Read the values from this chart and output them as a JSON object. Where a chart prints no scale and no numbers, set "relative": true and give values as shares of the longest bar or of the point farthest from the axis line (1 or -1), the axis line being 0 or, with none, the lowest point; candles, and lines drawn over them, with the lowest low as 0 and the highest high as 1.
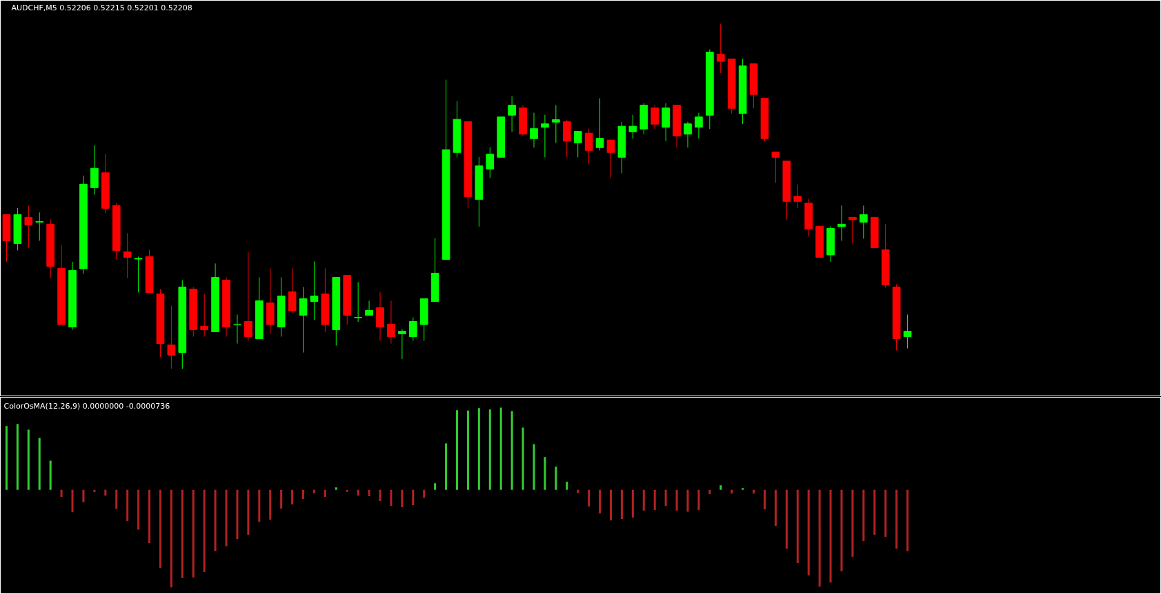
{
  "chart_data": [
    {
      "type": "candlestick",
      "title": "AUDCHF,M5 0.52206 0.52215 0.52201 0.52208",
      "relative": true,
      "tick_labels": false,
      "categories": [
        null,
        null,
        null,
        null,
        null,
        null,
        null,
        null,
        null,
        null,
        null,
        null,
        null,
        null,
        null,
        null,
        null,
        null,
        null,
        null,
        null,
        null,
        null,
        null,
        null,
        null,
        null,
        null,
        null,
        null,
        null,
        null,
        null,
        null,
        null,
        null,
        null,
        null,
        null,
        null,
        null,
        null,
        null,
        null,
        null,
        null,
        null,
        null,
        null,
        null,
        null,
        null,
        null,
        null,
        null,
        null,
        null,
        null,
        null,
        null,
        null,
        null,
        null,
        null,
        null,
        null,
        null,
        null,
        null,
        null,
        null,
        null,
        null,
        null,
        null,
        null,
        null,
        null,
        null,
        null,
        null,
        null,
        null
      ],
      "ohlc": [
        [
          0.447,
          0.447,
          0.31,
          0.371
        ],
        [
          0.363,
          0.466,
          0.343,
          0.447
        ],
        [
          0.439,
          0.473,
          0.351,
          0.417
        ],
        [
          0.425,
          0.453,
          0.371,
          0.427
        ],
        [
          0.419,
          0.433,
          0.263,
          0.297
        ],
        [
          0.291,
          0.358,
          0.128,
          0.128
        ],
        [
          0.121,
          0.31,
          0.113,
          0.285
        ],
        [
          0.29,
          0.56,
          0.275,
          0.535
        ],
        [
          0.525,
          0.648,
          0.505,
          0.581
        ],
        [
          0.568,
          0.623,
          0.451,
          0.465
        ],
        [
          0.473,
          0.48,
          0.317,
          0.343
        ],
        [
          0.339,
          0.393,
          0.263,
          0.323
        ],
        [
          0.318,
          0.325,
          0.221,
          0.32
        ],
        [
          0.325,
          0.345,
          0.221,
          0.221
        ],
        [
          0.217,
          0.231,
          0.034,
          0.073
        ],
        [
          0.069,
          0.183,
          0,
          0.039
        ],
        [
          0.047,
          0.257,
          0,
          0.237
        ],
        [
          0.231,
          0.237,
          0.093,
          0.113
        ],
        [
          0.123,
          0.217,
          0.093,
          0.113
        ],
        [
          0.107,
          0.305,
          0.107,
          0.265
        ],
        [
          0.257,
          0.265,
          0.093,
          0.121
        ],
        [
          0.127,
          0.157,
          0.073,
          0.128
        ],
        [
          0.137,
          0.339,
          0.081,
          0.093
        ],
        [
          0.087,
          0.265,
          0.087,
          0.197
        ],
        [
          0.191,
          0.291,
          0.101,
          0.128
        ],
        [
          0.121,
          0.265,
          0.093,
          0.211
        ],
        [
          0.223,
          0.291,
          0.161,
          0.168
        ],
        [
          0.155,
          0.237,
          0.047,
          0.203
        ],
        [
          0.195,
          0.311,
          0.141,
          0.211
        ],
        [
          0.217,
          0.291,
          0.107,
          0.128
        ],
        [
          0.113,
          0.265,
          0.067,
          0.265
        ],
        [
          0.271,
          0.271,
          0.128,
          0.155
        ],
        [
          0.148,
          0.251,
          0.136,
          0.149
        ],
        [
          0.155,
          0.197,
          0.155,
          0.169
        ],
        [
          0.177,
          0.223,
          0.081,
          0.121
        ],
        [
          0.129,
          0.197,
          0.073,
          0.093
        ],
        [
          0.101,
          0.115,
          0.028,
          0.109
        ],
        [
          0.093,
          0.149,
          0.081,
          0.137
        ],
        [
          0.128,
          0.203,
          0.081,
          0.203
        ],
        [
          0.195,
          0.379,
          0.195,
          0.277
        ],
        [
          0.317,
          0.838,
          0.317,
          0.635
        ],
        [
          0.627,
          0.776,
          0.613,
          0.723
        ],
        [
          0.716,
          0.716,
          0.465,
          0.499
        ],
        [
          0.491,
          0.614,
          0.412,
          0.588
        ],
        [
          0.579,
          0.642,
          0.553,
          0.622
        ],
        [
          0.613,
          0.73,
          0.613,
          0.73
        ],
        [
          0.735,
          0.79,
          0.687,
          0.764
        ],
        [
          0.756,
          0.764,
          0.675,
          0.68
        ],
        [
          0.667,
          0.742,
          0.641,
          0.696
        ],
        [
          0.7,
          0.736,
          0.613,
          0.71
        ],
        [
          0.715,
          0.764,
          0.655,
          0.722
        ],
        [
          0.716,
          0.722,
          0.613,
          0.66
        ],
        [
          0.655,
          0.688,
          0.613,
          0.688
        ],
        [
          0.683,
          0.696,
          0.593,
          0.633
        ],
        [
          0.641,
          0.784,
          0.633,
          0.668
        ],
        [
          0.663,
          0.663,
          0.553,
          0.627
        ],
        [
          0.613,
          0.716,
          0.567,
          0.703
        ],
        [
          0.687,
          0.736,
          0.667,
          0.703
        ],
        [
          0.695,
          0.77,
          0.68,
          0.764
        ],
        [
          0.756,
          0.764,
          0.695,
          0.709
        ],
        [
          0.7,
          0.77,
          0.66,
          0.756
        ],
        [
          0.764,
          0.764,
          0.641,
          0.675
        ],
        [
          0.68,
          0.716,
          0.641,
          0.71
        ],
        [
          0.7,
          0.742,
          0.667,
          0.73
        ],
        [
          0.735,
          0.926,
          0.695,
          0.918
        ],
        [
          0.912,
          1,
          0.857,
          0.891
        ],
        [
          0.898,
          0.898,
          0.74,
          0.755
        ],
        [
          0.74,
          0.898,
          0.709,
          0.878
        ],
        [
          0.884,
          0.884,
          0.755,
          0.795
        ],
        [
          0.784,
          0.784,
          0.66,
          0.667
        ],
        [
          0.628,
          0.628,
          0.539,
          0.613
        ],
        [
          0.602,
          0.602,
          0.432,
          0.485
        ],
        [
          0.5,
          0.534,
          0.465,
          0.485
        ],
        [
          0.48,
          0.493,
          0.383,
          0.405
        ],
        [
          0.413,
          0.413,
          0.323,
          0.323
        ],
        [
          0.33,
          0.413,
          0.31,
          0.407
        ],
        [
          0.412,
          0.473,
          0.371,
          0.419
        ],
        [
          0.439,
          0.439,
          0.363,
          0.432
        ],
        [
          0.425,
          0.473,
          0.377,
          0.447
        ],
        [
          0.439,
          0.439,
          0.351,
          0.351
        ],
        [
          0.345,
          0.419,
          0.235,
          0.243
        ],
        [
          0.237,
          0.245,
          0.053,
          0.087
        ],
        [
          0.093,
          0.157,
          0.059,
          0.109
        ]
      ],
      "colors": [
        "#ff0000",
        "#00ff00",
        "#ff0000",
        "#00ff00",
        "#ff0000",
        "#ff0000",
        "#00ff00",
        "#00ff00",
        "#00ff00",
        "#ff0000",
        "#ff0000",
        "#ff0000",
        "#00ff00",
        "#ff0000",
        "#ff0000",
        "#ff0000",
        "#00ff00",
        "#ff0000",
        "#ff0000",
        "#00ff00",
        "#ff0000",
        "#00ff00",
        "#ff0000",
        "#00ff00",
        "#ff0000",
        "#00ff00",
        "#ff0000",
        "#00ff00",
        "#00ff00",
        "#ff0000",
        "#00ff00",
        "#ff0000",
        "#00ff00",
        "#00ff00",
        "#ff0000",
        "#ff0000",
        "#00ff00",
        "#00ff00",
        "#00ff00",
        "#00ff00",
        "#00ff00",
        "#00ff00",
        "#ff0000",
        "#00ff00",
        "#00ff00",
        "#00ff00",
        "#00ff00",
        "#ff0000",
        "#00ff00",
        "#00ff00",
        "#00ff00",
        "#ff0000",
        "#00ff00",
        "#ff0000",
        "#00ff00",
        "#ff0000",
        "#00ff00",
        "#00ff00",
        "#00ff00",
        "#ff0000",
        "#00ff00",
        "#ff0000",
        "#00ff00",
        "#00ff00",
        "#00ff00",
        "#ff0000",
        "#ff0000",
        "#00ff00",
        "#ff0000",
        "#ff0000",
        "#ff0000",
        "#ff0000",
        "#ff0000",
        "#ff0000",
        "#ff0000",
        "#00ff00",
        "#00ff00",
        "#ff0000",
        "#00ff00",
        "#ff0000",
        "#ff0000",
        "#ff0000",
        "#00ff00"
      ]
    },
    {
      "type": "bar",
      "title": "ColorOsMA(12,26,9) 0.0000000 -0.0000736",
      "relative": true,
      "tick_labels": false,
      "categories": [
        null,
        null,
        null,
        null,
        null,
        null,
        null,
        null,
        null,
        null,
        null,
        null,
        null,
        null,
        null,
        null,
        null,
        null,
        null,
        null,
        null,
        null,
        null,
        null,
        null,
        null,
        null,
        null,
        null,
        null,
        null,
        null,
        null,
        null,
        null,
        null,
        null,
        null,
        null,
        null,
        null,
        null,
        null,
        null,
        null,
        null,
        null,
        null,
        null,
        null,
        null,
        null,
        null,
        null,
        null,
        null,
        null,
        null,
        null,
        null,
        null,
        null,
        null,
        null,
        null,
        null,
        null,
        null,
        null,
        null,
        null,
        null,
        null,
        null,
        null,
        null,
        null,
        null,
        null,
        null,
        null,
        null,
        null
      ],
      "values": [
        0.653,
        0.674,
        0.616,
        0.532,
        0.299,
        -0.073,
        -0.23,
        -0.13,
        -0.024,
        -0.06,
        -0.199,
        -0.32,
        -0.408,
        -0.547,
        -0.801,
        -1,
        -0.906,
        -0.9,
        -0.843,
        -0.631,
        -0.58,
        -0.505,
        -0.462,
        -0.329,
        -0.308,
        -0.193,
        -0.151,
        -0.094,
        -0.036,
        -0.073,
        0.024,
        -0.021,
        -0.06,
        -0.066,
        -0.115,
        -0.166,
        -0.178,
        -0.157,
        -0.082,
        0.066,
        0.474,
        0.816,
        0.813,
        0.837,
        0.822,
        0.843,
        0.807,
        0.637,
        0.468,
        0.335,
        0.236,
        0.082,
        -0.033,
        -0.172,
        -0.242,
        -0.314,
        -0.299,
        -0.287,
        -0.215,
        -0.208,
        -0.166,
        -0.215,
        -0.224,
        -0.208,
        -0.045,
        0.045,
        -0.039,
        0.018,
        -0.039,
        -0.202,
        -0.372,
        -0.604,
        -0.752,
        -0.879,
        -0.994,
        -0.952,
        -0.837,
        -0.689,
        -0.526,
        -0.462,
        -0.483,
        -0.604,
        -0.631
      ],
      "colors": [
        "#32cd32",
        "#32cd32",
        "#32cd32",
        "#32cd32",
        "#32cd32",
        "#b22222",
        "#b22222",
        "#b22222",
        "#b22222",
        "#b22222",
        "#b22222",
        "#b22222",
        "#b22222",
        "#b22222",
        "#b22222",
        "#b22222",
        "#b22222",
        "#b22222",
        "#b22222",
        "#b22222",
        "#b22222",
        "#b22222",
        "#b22222",
        "#b22222",
        "#b22222",
        "#b22222",
        "#b22222",
        "#b22222",
        "#b22222",
        "#b22222",
        "#32cd32",
        "#b22222",
        "#b22222",
        "#b22222",
        "#b22222",
        "#b22222",
        "#b22222",
        "#b22222",
        "#b22222",
        "#32cd32",
        "#32cd32",
        "#32cd32",
        "#32cd32",
        "#32cd32",
        "#32cd32",
        "#32cd32",
        "#32cd32",
        "#32cd32",
        "#32cd32",
        "#32cd32",
        "#32cd32",
        "#32cd32",
        "#b22222",
        "#b22222",
        "#b22222",
        "#b22222",
        "#b22222",
        "#b22222",
        "#b22222",
        "#b22222",
        "#b22222",
        "#b22222",
        "#b22222",
        "#b22222",
        "#b22222",
        "#32cd32",
        "#b22222",
        "#32cd32",
        "#b22222",
        "#b22222",
        "#b22222",
        "#b22222",
        "#b22222",
        "#b22222",
        "#b22222",
        "#b22222",
        "#b22222",
        "#b22222",
        "#b22222",
        "#b22222",
        "#b22222",
        "#b22222",
        "#b22222"
      ]
    }
  ]
}
